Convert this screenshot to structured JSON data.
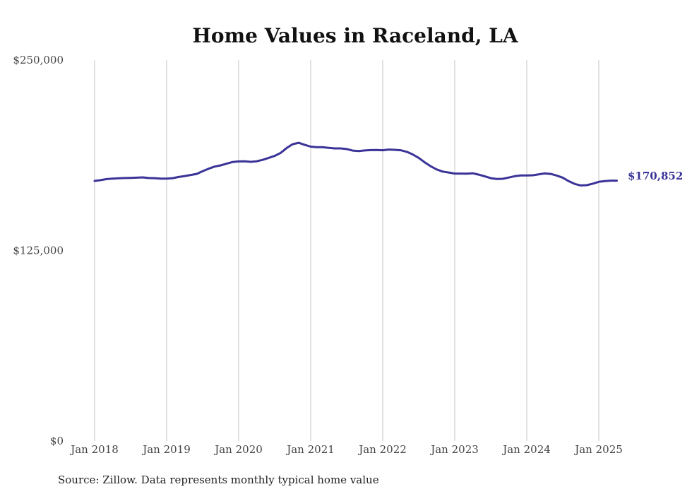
{
  "chart_data": {
    "type": "line",
    "title": "Home Values in Raceland, LA",
    "xlabel": "",
    "ylabel": "",
    "ylim": [
      0,
      250000
    ],
    "y_ticks": [
      0,
      125000,
      250000
    ],
    "y_tick_labels": [
      "$0",
      "$125,000",
      "$250,000"
    ],
    "x_range": [
      "2018-01",
      "2025-04"
    ],
    "x_ticks": [
      "2018-01",
      "2019-01",
      "2020-01",
      "2021-01",
      "2022-01",
      "2023-01",
      "2024-01",
      "2025-01"
    ],
    "x_tick_labels": [
      "Jan 2018",
      "Jan 2019",
      "Jan 2020",
      "Jan 2021",
      "Jan 2022",
      "Jan 2023",
      "Jan 2024",
      "Jan 2025"
    ],
    "grid": "vertical",
    "line_color": "#3a3398",
    "series": [
      {
        "x": [
          "2018-01",
          "2018-02",
          "2018-03",
          "2018-04",
          "2018-05",
          "2018-06",
          "2018-07",
          "2018-08",
          "2018-09",
          "2018-10",
          "2018-11",
          "2018-12",
          "2019-01",
          "2019-02",
          "2019-03",
          "2019-04",
          "2019-05",
          "2019-06",
          "2019-07",
          "2019-08",
          "2019-09",
          "2019-10",
          "2019-11",
          "2019-12",
          "2020-01",
          "2020-02",
          "2020-03",
          "2020-04",
          "2020-05",
          "2020-06",
          "2020-07",
          "2020-08",
          "2020-09",
          "2020-10",
          "2020-11",
          "2020-12",
          "2021-01",
          "2021-02",
          "2021-03",
          "2021-04",
          "2021-05",
          "2021-06",
          "2021-07",
          "2021-08",
          "2021-09",
          "2021-10",
          "2021-11",
          "2021-12",
          "2022-01",
          "2022-02",
          "2022-03",
          "2022-04",
          "2022-05",
          "2022-06",
          "2022-07",
          "2022-08",
          "2022-09",
          "2022-10",
          "2022-11",
          "2022-12",
          "2023-01",
          "2023-02",
          "2023-03",
          "2023-04",
          "2023-05",
          "2023-06",
          "2023-07",
          "2023-08",
          "2023-09",
          "2023-10",
          "2023-11",
          "2023-12",
          "2024-01",
          "2024-02",
          "2024-03",
          "2024-04",
          "2024-05",
          "2024-06",
          "2024-07",
          "2024-08",
          "2024-09",
          "2024-10",
          "2024-11",
          "2024-12",
          "2025-01",
          "2025-02",
          "2025-03",
          "2025-04"
        ],
        "values": [
          170700,
          171200,
          171900,
          172200,
          172400,
          172600,
          172700,
          172800,
          173000,
          172600,
          172500,
          172200,
          172200,
          172500,
          173300,
          173900,
          174600,
          175300,
          177100,
          178700,
          180100,
          180900,
          182000,
          183100,
          183500,
          183600,
          183200,
          183600,
          184500,
          185800,
          187100,
          189100,
          192300,
          194800,
          195700,
          194400,
          193200,
          192800,
          192800,
          192400,
          192000,
          192000,
          191600,
          190600,
          190300,
          190700,
          190900,
          191000,
          190800,
          191300,
          191100,
          190800,
          189800,
          188100,
          185800,
          182900,
          180300,
          178200,
          176800,
          176200,
          175500,
          175500,
          175400,
          175700,
          174800,
          173700,
          172500,
          172000,
          172100,
          172900,
          173800,
          174300,
          174300,
          174400,
          175000,
          175600,
          175300,
          174200,
          172800,
          170500,
          168700,
          167700,
          167900,
          168900,
          170100,
          170600,
          170852,
          170852
        ]
      }
    ],
    "end_label": "$170,852"
  },
  "source": "Source: Zillow. Data represents monthly typical home value"
}
